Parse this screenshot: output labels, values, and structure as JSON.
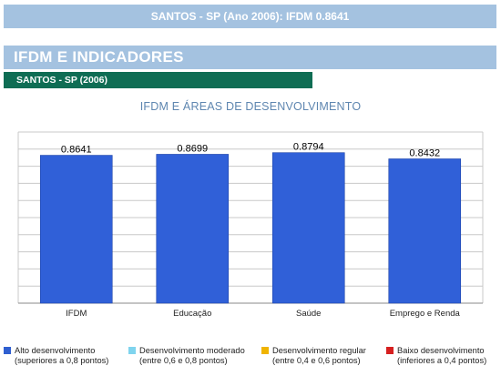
{
  "banner": {
    "title": "SANTOS - SP (Ano 2006): IFDM 0.8641"
  },
  "section": {
    "title": "IFDM E INDICADORES"
  },
  "subsection": {
    "title": "SANTOS - SP (2006)"
  },
  "chart_title": "IFDM E ÁREAS DE DESENVOLVIMENTO",
  "chart_data": {
    "type": "bar",
    "title": "IFDM E ÁREAS DE DESENVOLVIMENTO",
    "categories": [
      "IFDM",
      "Educação",
      "Saúde",
      "Emprego e Renda"
    ],
    "values": [
      0.8641,
      0.8699,
      0.8794,
      0.8432
    ],
    "data_labels": [
      "0.8641",
      "0.8699",
      "0.8794",
      "0.8432"
    ],
    "bar_color": "#3060d8",
    "ylim": [
      0,
      1
    ],
    "grid": true,
    "gridline_count": 10
  },
  "legend": [
    {
      "color": "#2f5fd0",
      "line1": "Alto desenvolvimento",
      "line2": "(superiores a 0,8 pontos)"
    },
    {
      "color": "#7fd4ee",
      "line1": "Desenvolvimento moderado",
      "line2": "(entre 0,6 e 0,8 pontos)"
    },
    {
      "color": "#f0b400",
      "line1": "Desenvolvimento regular",
      "line2": "(entre 0,4 e 0,6 pontos)"
    },
    {
      "color": "#d62020",
      "line1": "Baixo desenvolvimento",
      "line2": "(inferiores a 0,4 pontos)"
    }
  ]
}
